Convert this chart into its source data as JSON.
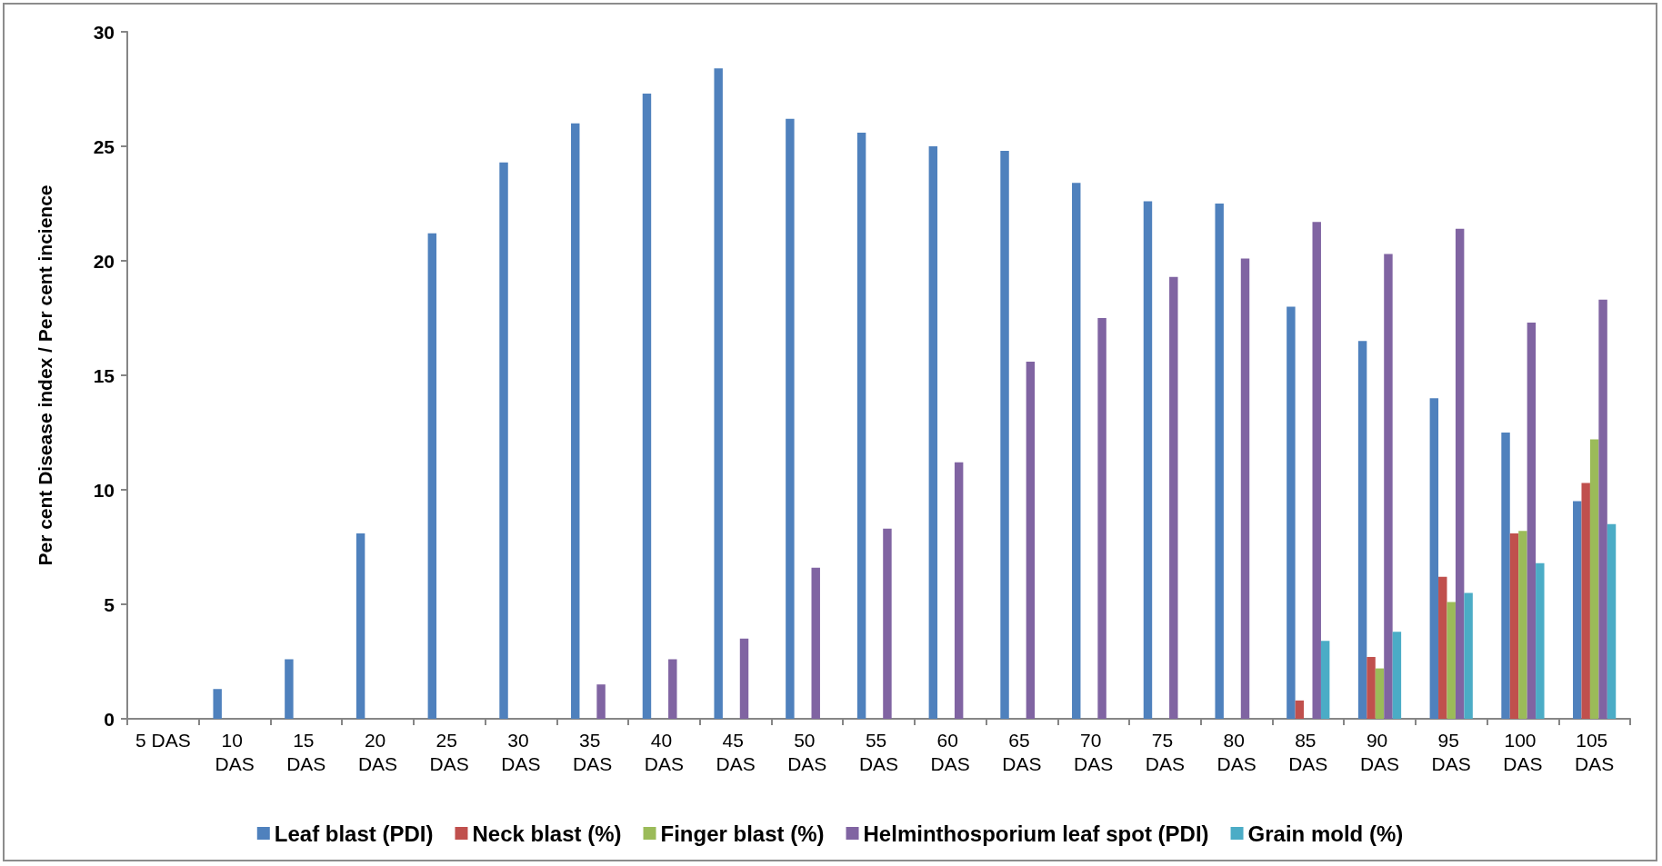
{
  "chart_data": {
    "type": "bar",
    "ylabel": "Per cent Disease index / Per cent incience",
    "categories": [
      "5 DAS",
      "10 DAS",
      "15 DAS",
      "20 DAS",
      "25 DAS",
      "30 DAS",
      "35 DAS",
      "40 DAS",
      "45 DAS",
      "50 DAS",
      "55 DAS",
      "60 DAS",
      "65 DAS",
      "70 DAS",
      "75 DAS",
      "80 DAS",
      "85 DAS",
      "90 DAS",
      "95 DAS",
      "100 DAS",
      "105 DAS"
    ],
    "series": [
      {
        "name": "Leaf blast (PDI)",
        "color": "#4f81bd",
        "values": [
          0,
          1.3,
          2.6,
          8.1,
          21.2,
          24.3,
          26.0,
          27.3,
          28.4,
          26.2,
          25.6,
          25.0,
          24.8,
          23.4,
          22.6,
          22.5,
          18.0,
          16.5,
          14.0,
          12.5,
          9.5
        ]
      },
      {
        "name": "Neck blast (%)",
        "color": "#c0504d",
        "values": [
          0,
          0,
          0,
          0,
          0,
          0,
          0,
          0,
          0,
          0,
          0,
          0,
          0,
          0,
          0,
          0,
          0.8,
          2.7,
          6.2,
          8.1,
          10.3
        ]
      },
      {
        "name": "Finger blast (%)",
        "color": "#9bbb59",
        "values": [
          0,
          0,
          0,
          0,
          0,
          0,
          0,
          0,
          0,
          0,
          0,
          0,
          0,
          0,
          0,
          0,
          0,
          2.2,
          5.1,
          8.2,
          12.2
        ]
      },
      {
        "name": "Helminthosporium leaf spot (PDI)",
        "color": "#8064a2",
        "values": [
          0,
          0,
          0,
          0,
          0,
          0,
          1.5,
          2.6,
          3.5,
          6.6,
          8.3,
          11.2,
          15.6,
          17.5,
          19.3,
          20.1,
          21.7,
          20.3,
          21.4,
          17.3,
          18.3
        ]
      },
      {
        "name": "Grain mold (%)",
        "color": "#4bacc6",
        "values": [
          0,
          0,
          0,
          0,
          0,
          0,
          0,
          0,
          0,
          0,
          0,
          0,
          0,
          0,
          0,
          0,
          3.4,
          3.8,
          5.5,
          6.8,
          8.5
        ]
      }
    ],
    "ylim": [
      0,
      30
    ],
    "yticks": [
      0,
      5,
      10,
      15,
      20,
      25,
      30
    ],
    "grid": false,
    "legend": "bottom"
  }
}
